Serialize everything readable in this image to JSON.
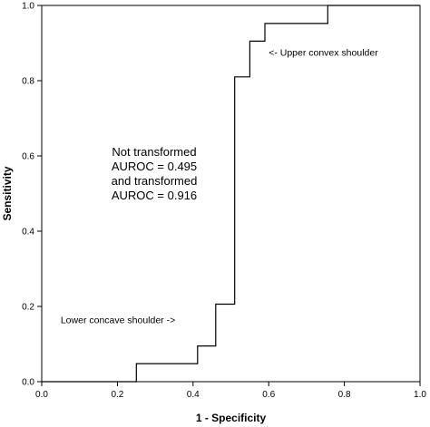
{
  "chart_data": {
    "type": "line",
    "title": "",
    "xlabel": "1 - Specificity",
    "ylabel": "Sensitivity",
    "xlim": [
      0.0,
      1.0
    ],
    "ylim": [
      0.0,
      1.0
    ],
    "x_ticks": [
      "0.0",
      "0.2",
      "0.4",
      "0.6",
      "0.8",
      "1.0"
    ],
    "y_ticks": [
      "0.0",
      "0.2",
      "0.4",
      "0.6",
      "0.8",
      "1.0"
    ],
    "grid": false,
    "legend": "none",
    "series": [
      {
        "points": [
          {
            "x": 0.0,
            "y": 0.0
          },
          {
            "x": 0.25,
            "y": 0.0
          },
          {
            "x": 0.25,
            "y": 0.048
          },
          {
            "x": 0.412,
            "y": 0.048
          },
          {
            "x": 0.412,
            "y": 0.095
          },
          {
            "x": 0.46,
            "y": 0.095
          },
          {
            "x": 0.46,
            "y": 0.206
          },
          {
            "x": 0.51,
            "y": 0.206
          },
          {
            "x": 0.51,
            "y": 0.81
          },
          {
            "x": 0.55,
            "y": 0.81
          },
          {
            "x": 0.55,
            "y": 0.905
          },
          {
            "x": 0.59,
            "y": 0.905
          },
          {
            "x": 0.59,
            "y": 0.952
          },
          {
            "x": 0.756,
            "y": 0.952
          },
          {
            "x": 0.756,
            "y": 1.0
          },
          {
            "x": 1.0,
            "y": 1.0
          }
        ]
      }
    ],
    "annotations": [
      {
        "id": "upper",
        "text": "<- Upper convex shoulder",
        "x": 0.6,
        "y": 0.866
      },
      {
        "id": "lower",
        "text": "Lower concave shoulder ->",
        "x": 0.05,
        "y": 0.155
      }
    ],
    "note_lines": [
      "Not transformed",
      "AUROC = 0.495",
      "and transformed",
      "AUROC = 0.916"
    ]
  }
}
